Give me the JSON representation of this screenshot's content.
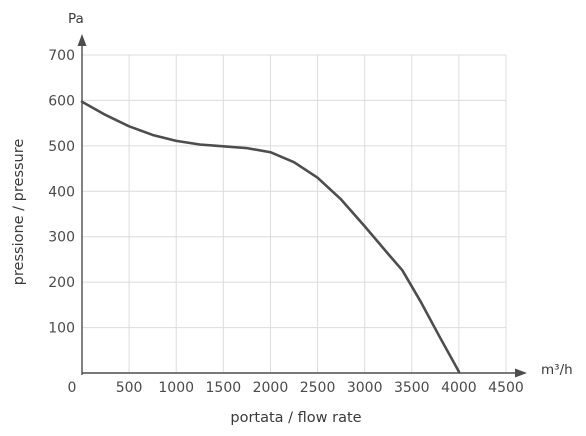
{
  "chart_data": {
    "type": "line",
    "ylabel": "pressione / pressure",
    "xlabel": "portata / flow rate",
    "y_unit": "Pa",
    "x_unit": "m³/h",
    "xlim": [
      0,
      4500
    ],
    "ylim": [
      0,
      700
    ],
    "x_ticks": [
      0,
      500,
      1000,
      1500,
      2000,
      2500,
      3000,
      3500,
      4000,
      4500
    ],
    "y_ticks": [
      100,
      200,
      300,
      400,
      500,
      600,
      700
    ],
    "grid": true,
    "series": [
      {
        "x": [
          0,
          250,
          500,
          750,
          1000,
          1250,
          1500,
          1750,
          2000,
          2250,
          2500,
          2750,
          3000,
          3250,
          3400,
          3600,
          3800,
          4000
        ],
        "y": [
          597,
          568,
          543,
          524,
          511,
          503,
          499,
          495,
          486,
          464,
          430,
          382,
          323,
          262,
          226,
          155,
          78,
          3
        ]
      }
    ],
    "colors": {
      "curve": "#4d4d4d",
      "axis": "#4d4d4d",
      "grid": "#dcdcdc",
      "text": "#4a4a4a"
    }
  }
}
